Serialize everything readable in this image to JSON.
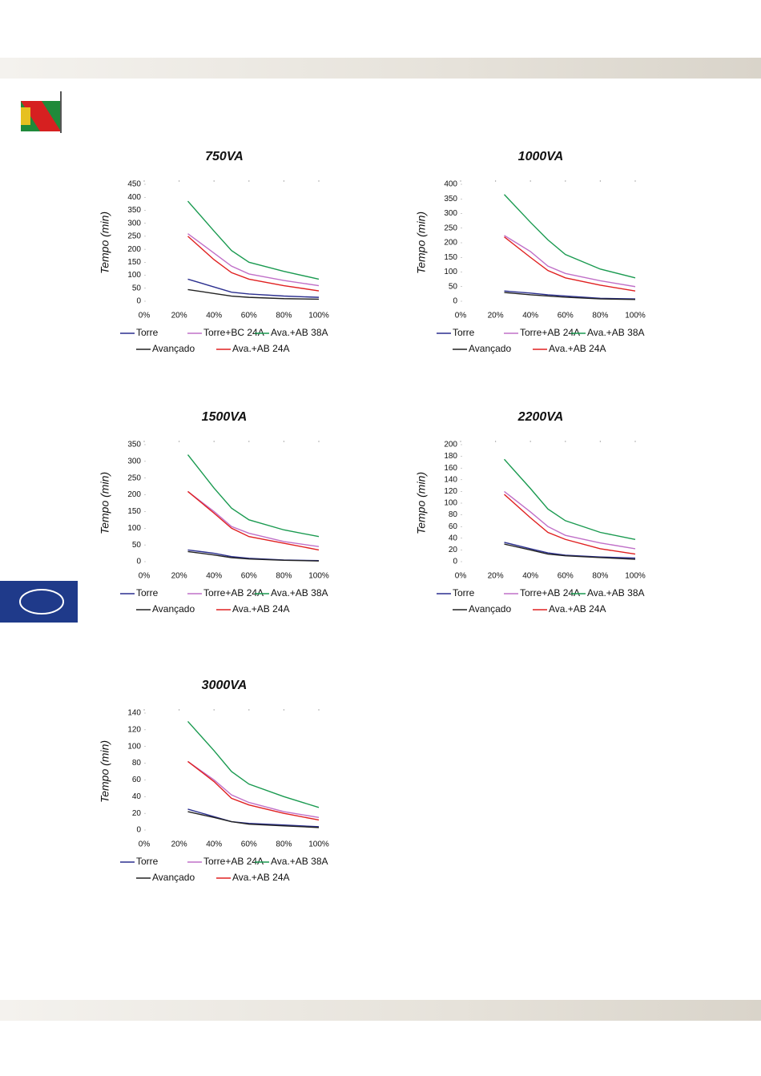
{
  "chart_data": [
    {
      "type": "line",
      "title": "750VA",
      "ylabel": "Tempo (min)",
      "x": [
        25,
        40,
        50,
        60,
        80,
        100
      ],
      "xlim": [
        0,
        100
      ],
      "xticks": [
        {
          "value": 0,
          "label": "0%"
        },
        {
          "value": 20,
          "label": "20%"
        },
        {
          "value": 40,
          "label": "40%"
        },
        {
          "value": 60,
          "label": "60%"
        },
        {
          "value": 80,
          "label": "80%"
        },
        {
          "value": 100,
          "label": "100%"
        }
      ],
      "ylim": [
        0,
        450
      ],
      "yticks": [
        0,
        50,
        100,
        150,
        200,
        250,
        300,
        350,
        400,
        450
      ],
      "series": [
        {
          "name": "Torre",
          "color": "#2b2f8f",
          "values": [
            85,
            55,
            35,
            28,
            20,
            15
          ]
        },
        {
          "name": "Torre+BC 24A",
          "color": "#c070c8",
          "values": [
            260,
            185,
            135,
            105,
            80,
            60
          ]
        },
        {
          "name": "Ava.+AB 38A",
          "color": "#1a9a50",
          "values": [
            385,
            270,
            195,
            150,
            115,
            85
          ]
        },
        {
          "name": "Avançado",
          "color": "#222222",
          "values": [
            45,
            30,
            20,
            15,
            10,
            8
          ]
        },
        {
          "name": "Ava.+AB 24A",
          "color": "#e02020",
          "values": [
            250,
            160,
            110,
            85,
            60,
            40
          ]
        }
      ]
    },
    {
      "type": "line",
      "title": "1000VA",
      "ylabel": "Tempo (min)",
      "x": [
        25,
        40,
        50,
        60,
        80,
        100
      ],
      "xlim": [
        0,
        100
      ],
      "xticks": [
        {
          "value": 0,
          "label": "0%"
        },
        {
          "value": 20,
          "label": "20%"
        },
        {
          "value": 40,
          "label": "40%"
        },
        {
          "value": 60,
          "label": "60%"
        },
        {
          "value": 80,
          "label": "80%"
        },
        {
          "value": 100,
          "label": "100%"
        }
      ],
      "ylim": [
        0,
        400
      ],
      "yticks": [
        0,
        50,
        100,
        150,
        200,
        250,
        300,
        350,
        400
      ],
      "series": [
        {
          "name": "Torre",
          "color": "#2b2f8f",
          "values": [
            35,
            28,
            22,
            18,
            10,
            8
          ]
        },
        {
          "name": "Torre+AB 24A",
          "color": "#c070c8",
          "values": [
            225,
            170,
            120,
            95,
            70,
            50
          ]
        },
        {
          "name": "Ava.+AB 38A",
          "color": "#1a9a50",
          "values": [
            365,
            270,
            210,
            160,
            110,
            80
          ]
        },
        {
          "name": "Avançado",
          "color": "#222222",
          "values": [
            30,
            22,
            18,
            14,
            8,
            6
          ]
        },
        {
          "name": "Ava.+AB 24A",
          "color": "#e02020",
          "values": [
            220,
            150,
            105,
            80,
            55,
            35
          ]
        }
      ]
    },
    {
      "type": "line",
      "title": "1500VA",
      "ylabel": "Tempo (min)",
      "x": [
        25,
        40,
        50,
        60,
        80,
        100
      ],
      "xlim": [
        0,
        100
      ],
      "xticks": [
        {
          "value": 0,
          "label": "0%"
        },
        {
          "value": 20,
          "label": "20%"
        },
        {
          "value": 40,
          "label": "40%"
        },
        {
          "value": 60,
          "label": "60%"
        },
        {
          "value": 80,
          "label": "80%"
        },
        {
          "value": 100,
          "label": "100%"
        }
      ],
      "ylim": [
        0,
        350
      ],
      "yticks": [
        0,
        50,
        100,
        150,
        200,
        250,
        300,
        350
      ],
      "series": [
        {
          "name": "Torre",
          "color": "#2b2f8f",
          "values": [
            35,
            25,
            15,
            10,
            5,
            3
          ]
        },
        {
          "name": "Torre+AB 24A",
          "color": "#c070c8",
          "values": [
            210,
            150,
            105,
            85,
            60,
            45
          ]
        },
        {
          "name": "Ava.+AB 38A",
          "color": "#1a9a50",
          "values": [
            320,
            220,
            160,
            125,
            95,
            75
          ]
        },
        {
          "name": "Avançado",
          "color": "#222222",
          "values": [
            30,
            20,
            12,
            8,
            4,
            2
          ]
        },
        {
          "name": "Ava.+AB 24A",
          "color": "#e02020",
          "values": [
            210,
            145,
            100,
            75,
            55,
            35
          ]
        }
      ]
    },
    {
      "type": "line",
      "title": "2200VA",
      "ylabel": "Tempo (min)",
      "x": [
        25,
        40,
        50,
        60,
        80,
        100
      ],
      "xlim": [
        0,
        100
      ],
      "xticks": [
        {
          "value": 0,
          "label": "0%"
        },
        {
          "value": 20,
          "label": "20%"
        },
        {
          "value": 40,
          "label": "40%"
        },
        {
          "value": 60,
          "label": "60%"
        },
        {
          "value": 80,
          "label": "80%"
        },
        {
          "value": 100,
          "label": "100%"
        }
      ],
      "ylim": [
        0,
        200
      ],
      "yticks": [
        0,
        20,
        40,
        60,
        80,
        100,
        120,
        140,
        160,
        180,
        200
      ],
      "series": [
        {
          "name": "Torre",
          "color": "#2b2f8f",
          "values": [
            33,
            22,
            15,
            11,
            8,
            6
          ]
        },
        {
          "name": "Torre+AB 24A",
          "color": "#c070c8",
          "values": [
            120,
            85,
            60,
            45,
            32,
            22
          ]
        },
        {
          "name": "Ava.+AB 38A",
          "color": "#1a9a50",
          "values": [
            175,
            125,
            90,
            70,
            50,
            38
          ]
        },
        {
          "name": "Avançado",
          "color": "#222222",
          "values": [
            30,
            20,
            13,
            10,
            7,
            4
          ]
        },
        {
          "name": "Ava.+AB 24A",
          "color": "#e02020",
          "values": [
            115,
            75,
            50,
            38,
            22,
            13
          ]
        }
      ]
    },
    {
      "type": "line",
      "title": "3000VA",
      "ylabel": "Tempo (min)",
      "x": [
        25,
        40,
        50,
        60,
        80,
        100
      ],
      "xlim": [
        0,
        100
      ],
      "xticks": [
        {
          "value": 0,
          "label": "0%"
        },
        {
          "value": 20,
          "label": "20%"
        },
        {
          "value": 40,
          "label": "40%"
        },
        {
          "value": 60,
          "label": "60%"
        },
        {
          "value": 80,
          "label": "80%"
        },
        {
          "value": 100,
          "label": "100%"
        }
      ],
      "ylim": [
        0,
        140
      ],
      "yticks": [
        0,
        20,
        40,
        60,
        80,
        100,
        120,
        140
      ],
      "series": [
        {
          "name": "Torre",
          "color": "#2b2f8f",
          "values": [
            25,
            16,
            10,
            8,
            6,
            4
          ]
        },
        {
          "name": "Torre+AB 24A",
          "color": "#c070c8",
          "values": [
            82,
            60,
            42,
            33,
            22,
            15
          ]
        },
        {
          "name": "Ava.+AB 38A",
          "color": "#1a9a50",
          "values": [
            130,
            95,
            70,
            55,
            40,
            27
          ]
        },
        {
          "name": "Avançado",
          "color": "#222222",
          "values": [
            22,
            15,
            10,
            7,
            5,
            3
          ]
        },
        {
          "name": "Ava.+AB 24A",
          "color": "#e02020",
          "values": [
            82,
            58,
            38,
            30,
            20,
            12
          ]
        }
      ]
    }
  ]
}
